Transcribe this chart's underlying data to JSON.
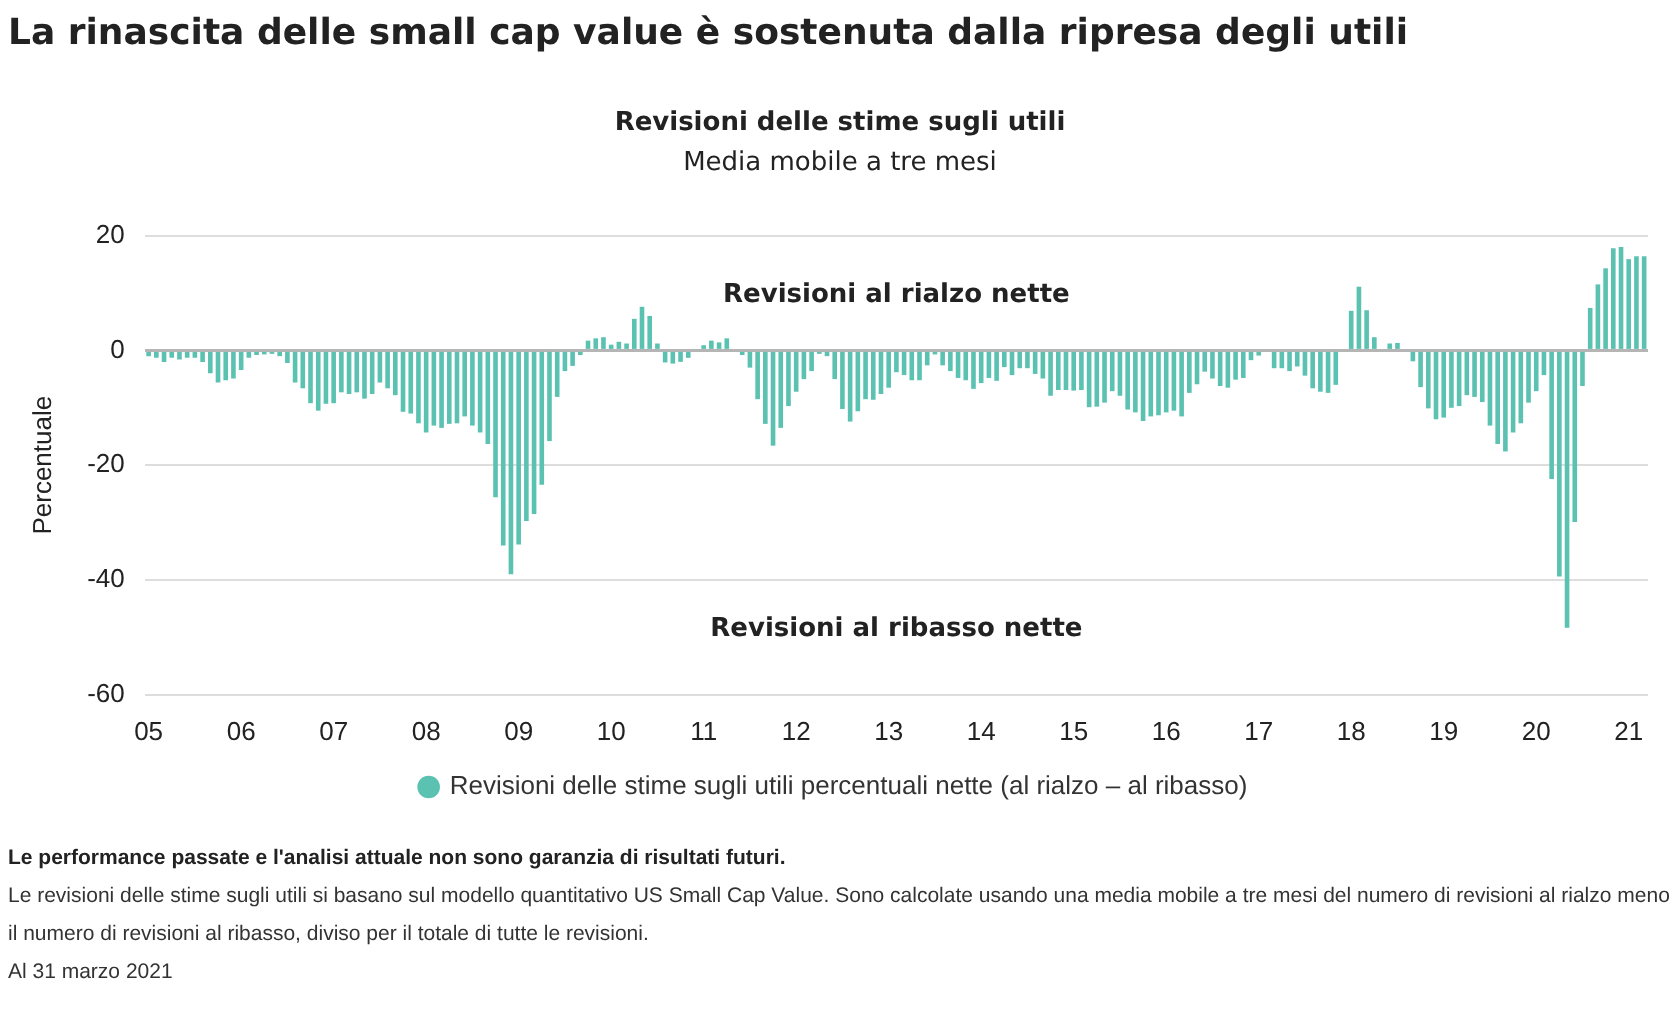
{
  "chart_data": {
    "type": "bar",
    "title": "La rinascita delle small cap value è sostenuta dalla ripresa degli utili",
    "subtitle": "Revisioni delle stime sugli utili\nMedia mobile a tre mesi",
    "ylabel": "Percentuale",
    "categories": [
      "05",
      null,
      null,
      null,
      null,
      null,
      null,
      null,
      null,
      null,
      null,
      null,
      "06",
      null,
      null,
      null,
      null,
      null,
      null,
      null,
      null,
      null,
      null,
      null,
      "07",
      null,
      null,
      null,
      null,
      null,
      null,
      null,
      null,
      null,
      null,
      null,
      "08",
      null,
      null,
      null,
      null,
      null,
      null,
      null,
      null,
      null,
      null,
      null,
      "09",
      null,
      null,
      null,
      null,
      null,
      null,
      null,
      null,
      null,
      null,
      null,
      "10",
      null,
      null,
      null,
      null,
      null,
      null,
      null,
      null,
      null,
      null,
      null,
      "11",
      null,
      null,
      null,
      null,
      null,
      null,
      null,
      null,
      null,
      null,
      null,
      "12",
      null,
      null,
      null,
      null,
      null,
      null,
      null,
      null,
      null,
      null,
      null,
      "13",
      null,
      null,
      null,
      null,
      null,
      null,
      null,
      null,
      null,
      null,
      null,
      "14",
      null,
      null,
      null,
      null,
      null,
      null,
      null,
      null,
      null,
      null,
      null,
      "15",
      null,
      null,
      null,
      null,
      null,
      null,
      null,
      null,
      null,
      null,
      null,
      "16",
      null,
      null,
      null,
      null,
      null,
      null,
      null,
      null,
      null,
      null,
      null,
      "17",
      null,
      null,
      null,
      null,
      null,
      null,
      null,
      null,
      null,
      null,
      null,
      "18",
      null,
      null,
      null,
      null,
      null,
      null,
      null,
      null,
      null,
      null,
      null,
      "19",
      null,
      null,
      null,
      null,
      null,
      null,
      null,
      null,
      null,
      null,
      null,
      "20",
      null,
      null,
      null,
      null,
      null,
      null,
      null,
      null,
      null,
      null,
      null,
      "21",
      null,
      null
    ],
    "series": [
      {
        "name": "Revisioni delle stime sugli utili percentuali nette (al rialzo – al ribasso)",
        "color": "#5bc2b2",
        "values": [
          -1,
          -1.3,
          -2,
          -1.3,
          -1.6,
          -1.3,
          -1.3,
          -2,
          -4,
          -5.6,
          -5.2,
          -4.9,
          -3.4,
          -1.3,
          -0.8,
          -0.7,
          -0.6,
          -1,
          -2.2,
          -5.6,
          -6.6,
          -9.2,
          -10.5,
          -9.3,
          -9.2,
          -7.3,
          -7.6,
          -7.3,
          -8.4,
          -7.6,
          -5.6,
          -6.6,
          -7.8,
          -10.7,
          -11,
          -12.7,
          -14.3,
          -13.1,
          -13.5,
          -12.8,
          -12.7,
          -11.5,
          -13.1,
          -14.3,
          -16.3,
          -25.6,
          -34,
          -39,
          -33.8,
          -29.7,
          -28.5,
          -23.4,
          -15.8,
          -8.1,
          -3.6,
          -2.7,
          -0.8,
          1.7,
          2.1,
          2.3,
          1,
          1.5,
          1.2,
          5.5,
          7.6,
          6,
          1.2,
          -2.1,
          -2.3,
          -2,
          -1.3,
          null,
          0.9,
          1.7,
          1.4,
          2.1,
          null,
          -0.8,
          -3,
          -8.5,
          -12.8,
          -16.6,
          -13.5,
          -9.7,
          -7.2,
          -5,
          -3.6,
          -0.6,
          -1,
          -5,
          -10.2,
          -12.4,
          -10.6,
          -8.5,
          -8.6,
          -7.6,
          -6.5,
          -3.8,
          -4.3,
          -5.2,
          -5.2,
          -2.6,
          -0.7,
          -2.6,
          -3.6,
          -4.8,
          -5.2,
          -6.7,
          -5.7,
          -4.8,
          -5.3,
          -2.9,
          -4.3,
          -3.1,
          -3.1,
          -4.1,
          -4.9,
          -7.9,
          -6.9,
          -6.9,
          -7,
          -6.9,
          -9.9,
          -9.8,
          -9.1,
          -7.1,
          -7.9,
          -10.3,
          -10.8,
          -12.3,
          -11.5,
          -11.3,
          -10.8,
          -10.5,
          -11.5,
          -7.4,
          -5.9,
          -3.7,
          -4.9,
          -6.2,
          -6.5,
          -5.1,
          -4.8,
          -1.7,
          -0.9,
          0,
          -3.1,
          -3.1,
          -3.6,
          -2.8,
          -4.4,
          -6.6,
          -7.2,
          -7.4,
          -6,
          0,
          6.9,
          11.1,
          7,
          2.3,
          null,
          1.2,
          1.3,
          null,
          -1.9,
          -6.4,
          -10.1,
          -12,
          -11.7,
          -10,
          -9.7,
          -7.8,
          -8.1,
          -9,
          -13.1,
          -16.3,
          -17.6,
          -14.3,
          -12.7,
          -9.1,
          -7.1,
          -4.3,
          -22.4,
          -39.4,
          -48.3,
          -29.9,
          -6.2,
          7.4,
          11.5,
          14.3,
          17.8,
          18,
          15.9,
          16.4,
          16.4
        ]
      }
    ],
    "ylim": [
      -60,
      20
    ],
    "yticks": [
      -60,
      -40,
      -20,
      0,
      20
    ],
    "grid": "y",
    "legend": "bottom",
    "marker": "circle",
    "annotations": [
      "Revisioni al rialzo nette",
      "Revisioni al ribasso nette",
      "Le performance passate e l'analisi attuale non sono garanzia di risultati futuri.",
      "Le revisioni delle stime sugli utili si basano sul modello quantitativo US Small Cap Value. Sono calcolate usando una media mobile a tre mesi del numero di revisioni al rialzo meno il numero di revisioni al ribasso, diviso per il totale di tutte le revisioni.",
      "Al 31 marzo 2021"
    ]
  }
}
